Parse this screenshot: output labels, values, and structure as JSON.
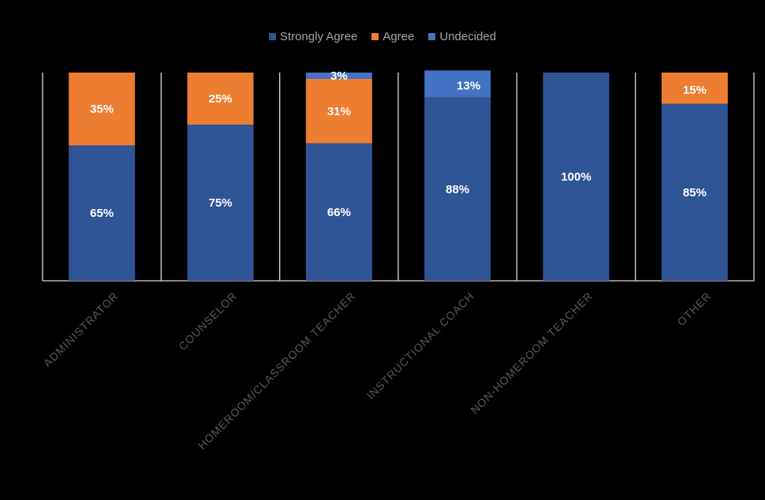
{
  "chart_data": {
    "type": "bar",
    "stacked": true,
    "percent_stacked": true,
    "legend_position": "top",
    "grid": false,
    "ylim": [
      0,
      100
    ],
    "categories": [
      "ADMINISTRATOR",
      "COUNSELOR",
      "HOMEROOM/CLASSROOM TEACHER",
      "INSTRUCTIONAL COACH",
      "NON-HOMEROOM TEACHER",
      "OTHER"
    ],
    "series": [
      {
        "name": "Strongly Agree",
        "color": "#2F5597",
        "values": [
          65,
          75,
          66,
          88,
          100,
          85
        ],
        "labels": [
          "65%",
          "75%",
          "66%",
          "88%",
          "100%",
          "85%"
        ]
      },
      {
        "name": "Agree",
        "color": "#ED7D31",
        "values": [
          35,
          25,
          31,
          0,
          0,
          15
        ],
        "labels": [
          "35%",
          "25%",
          "31%",
          "",
          "",
          "15%"
        ]
      },
      {
        "name": "Undecided",
        "color": "#4472C4",
        "values": [
          0,
          0,
          3,
          13,
          0,
          0
        ],
        "labels": [
          "",
          "",
          "3%",
          "13%",
          "",
          ""
        ]
      }
    ]
  }
}
